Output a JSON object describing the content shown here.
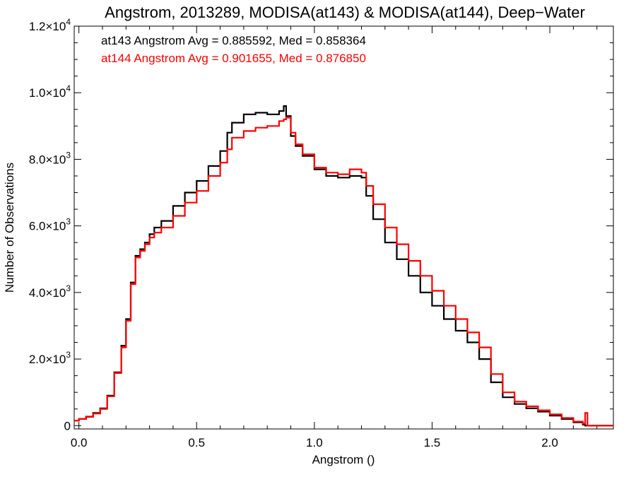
{
  "chart_data": {
    "type": "line",
    "title": "Angstrom, 2013289, MODISA(at143) & MODISA(at144), Deep−Water",
    "xlabel": "Angstrom ()",
    "ylabel": "Number of Observations",
    "xlim": [
      -0.02,
      2.27
    ],
    "ylim": [
      -100,
      12000
    ],
    "x_ticks": [
      0.0,
      0.5,
      1.0,
      1.5,
      2.0
    ],
    "x_tick_labels": [
      "0.0",
      "0.5",
      "1.0",
      "1.5",
      "2.0"
    ],
    "y_ticks": [
      0,
      2000,
      4000,
      6000,
      8000,
      10000,
      12000
    ],
    "y_tick_labels": [
      {
        "mantissa": "0",
        "exp": ""
      },
      {
        "mantissa": "2.0×10",
        "exp": "3"
      },
      {
        "mantissa": "4.0×10",
        "exp": "3"
      },
      {
        "mantissa": "6.0×10",
        "exp": "3"
      },
      {
        "mantissa": "8.0×10",
        "exp": "3"
      },
      {
        "mantissa": "1.0×10",
        "exp": "4"
      },
      {
        "mantissa": "1.2×10",
        "exp": "4"
      }
    ],
    "annotations": [
      {
        "text": "at143 Angstrom Avg = 0.885592, Med = 0.858364",
        "color": "#000000"
      },
      {
        "text": "at144 Angstrom Avg = 0.901655, Med = 0.876850",
        "color": "#ff0000"
      }
    ],
    "series": [
      {
        "color": "#000000",
        "x": [
          -0.02,
          0.0,
          0.03,
          0.06,
          0.09,
          0.12,
          0.15,
          0.18,
          0.2,
          0.22,
          0.24,
          0.26,
          0.28,
          0.3,
          0.32,
          0.35,
          0.4,
          0.45,
          0.5,
          0.55,
          0.6,
          0.63,
          0.65,
          0.7,
          0.75,
          0.8,
          0.85,
          0.87,
          0.88,
          0.9,
          0.92,
          0.95,
          1.0,
          1.05,
          1.1,
          1.15,
          1.2,
          1.22,
          1.25,
          1.3,
          1.35,
          1.4,
          1.45,
          1.5,
          1.55,
          1.6,
          1.65,
          1.7,
          1.75,
          1.8,
          1.85,
          1.9,
          1.95,
          2.0,
          2.05,
          2.1,
          2.14,
          2.15,
          2.16,
          2.2,
          2.27
        ],
        "y": [
          150,
          200,
          270,
          380,
          520,
          900,
          1600,
          2400,
          3200,
          4300,
          5100,
          5300,
          5500,
          5750,
          5950,
          6150,
          6600,
          7000,
          7350,
          7800,
          8250,
          8800,
          9100,
          9350,
          9400,
          9350,
          9450,
          9600,
          9300,
          8700,
          8400,
          8100,
          7700,
          7500,
          7450,
          7500,
          7450,
          6900,
          6200,
          5500,
          5000,
          4500,
          4000,
          3600,
          3200,
          2850,
          2500,
          2000,
          1300,
          850,
          650,
          520,
          420,
          300,
          200,
          100,
          30,
          0,
          0,
          0,
          0
        ]
      },
      {
        "color": "#ff0000",
        "x": [
          -0.02,
          0.0,
          0.03,
          0.06,
          0.09,
          0.12,
          0.15,
          0.18,
          0.2,
          0.22,
          0.24,
          0.26,
          0.28,
          0.3,
          0.32,
          0.35,
          0.4,
          0.45,
          0.5,
          0.55,
          0.6,
          0.63,
          0.65,
          0.7,
          0.75,
          0.8,
          0.85,
          0.87,
          0.88,
          0.9,
          0.92,
          0.95,
          1.0,
          1.05,
          1.1,
          1.15,
          1.2,
          1.22,
          1.25,
          1.3,
          1.35,
          1.4,
          1.45,
          1.5,
          1.55,
          1.6,
          1.65,
          1.7,
          1.75,
          1.8,
          1.85,
          1.9,
          1.95,
          2.0,
          2.05,
          2.1,
          2.14,
          2.15,
          2.16,
          2.2,
          2.27
        ],
        "y": [
          150,
          200,
          260,
          360,
          500,
          880,
          1580,
          2350,
          3150,
          4250,
          5050,
          5250,
          5450,
          5650,
          5800,
          5950,
          6300,
          6700,
          7050,
          7500,
          7900,
          8300,
          8650,
          8850,
          8950,
          9000,
          9150,
          9200,
          9250,
          8800,
          8450,
          8150,
          7750,
          7600,
          7550,
          7700,
          7600,
          7200,
          6650,
          5950,
          5450,
          4950,
          4500,
          4050,
          3600,
          3200,
          2800,
          2350,
          1550,
          1000,
          720,
          580,
          460,
          340,
          230,
          120,
          60,
          380,
          0,
          0,
          0
        ]
      }
    ]
  }
}
